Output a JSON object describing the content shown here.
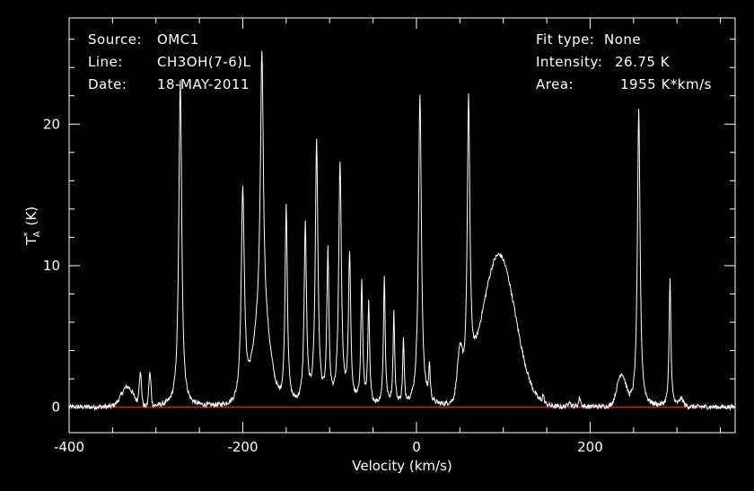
{
  "header": {
    "source_label": "Source:",
    "source_value": "OMC1",
    "line_label": "Line:",
    "line_value": "CH3OH(7-6)L",
    "date_label": "Date:",
    "date_value": "18-MAY-2011",
    "fit_label": "Fit type:",
    "fit_value": "None",
    "intensity_label": "Intensity:",
    "intensity_value": "26.75 K",
    "area_label": "Area:",
    "area_value": "1955 K*km/s"
  },
  "chart_data": {
    "type": "line",
    "xlabel": "Velocity (km/s)",
    "ylabel": "T*A (K)",
    "ylabel_main": "T",
    "ylabel_sup": "*",
    "ylabel_sub": "A",
    "ylabel_unit": "(K)",
    "xlim": [
      -400,
      367
    ],
    "ylim": [
      -1.8,
      27.5
    ],
    "xticks": [
      -400,
      -200,
      0,
      200
    ],
    "xtick_labels": [
      "-400",
      "-200",
      "0",
      "200"
    ],
    "yticks": [
      0,
      10,
      20
    ],
    "ytick_labels": [
      "0",
      "10",
      "20"
    ],
    "baseline": 0,
    "colors": {
      "background": "#000000",
      "spectrum": "#ffffff",
      "baseline": "#cc2222",
      "axes": "#ffffff"
    },
    "components": [
      {
        "type": "gauss",
        "x": -333,
        "a": 1.4,
        "w": 7
      },
      {
        "type": "gauss",
        "x": -318,
        "a": 2.2,
        "w": 1.4
      },
      {
        "type": "gauss",
        "x": -307,
        "a": 2.3,
        "w": 1.3
      },
      {
        "type": "lor",
        "x": -272,
        "a": 23.0,
        "w": 2.0
      },
      {
        "type": "gauss",
        "x": -178,
        "a": 6.0,
        "w": 9
      },
      {
        "type": "lor",
        "x": -200,
        "a": 15.0,
        "w": 2.2
      },
      {
        "type": "lor",
        "x": -178,
        "a": 19.0,
        "w": 2.0
      },
      {
        "type": "lor",
        "x": -150,
        "a": 14.0,
        "w": 1.6
      },
      {
        "type": "lor",
        "x": -128,
        "a": 12.5,
        "w": 1.6
      },
      {
        "type": "lor",
        "x": -115,
        "a": 18.5,
        "w": 1.8
      },
      {
        "type": "lor",
        "x": -102,
        "a": 10.5,
        "w": 1.4
      },
      {
        "type": "lor",
        "x": -88,
        "a": 17.0,
        "w": 1.8
      },
      {
        "type": "lor",
        "x": -77,
        "a": 10.5,
        "w": 1.5
      },
      {
        "type": "lor",
        "x": -63,
        "a": 8.5,
        "w": 1.3
      },
      {
        "type": "lor",
        "x": -55,
        "a": 7.0,
        "w": 1.2
      },
      {
        "type": "lor",
        "x": -37,
        "a": 9.0,
        "w": 1.2
      },
      {
        "type": "lor",
        "x": -26,
        "a": 6.5,
        "w": 1.1
      },
      {
        "type": "lor",
        "x": -15,
        "a": 4.5,
        "w": 1.0
      },
      {
        "type": "lor",
        "x": 4,
        "a": 22.0,
        "w": 2.0
      },
      {
        "type": "lor",
        "x": 15,
        "a": 2.5,
        "w": 1.0
      },
      {
        "type": "lor",
        "x": 60,
        "a": 20.0,
        "w": 1.8
      },
      {
        "type": "gauss",
        "x": 50,
        "a": 3.0,
        "w": 3
      },
      {
        "type": "gauss",
        "x": 95,
        "a": 10.7,
        "w": 19
      },
      {
        "type": "lor",
        "x": 146,
        "a": 0.6,
        "w": 1.0
      },
      {
        "type": "lor",
        "x": 176,
        "a": 0.5,
        "w": 1.2
      },
      {
        "type": "lor",
        "x": 188,
        "a": 0.7,
        "w": 1.2
      },
      {
        "type": "gauss",
        "x": 236,
        "a": 2.2,
        "w": 5
      },
      {
        "type": "lor",
        "x": 256,
        "a": 21.0,
        "w": 1.8
      },
      {
        "type": "lor",
        "x": 292,
        "a": 9.1,
        "w": 1.2
      },
      {
        "type": "gauss",
        "x": 305,
        "a": 0.5,
        "w": 2.5
      }
    ]
  }
}
